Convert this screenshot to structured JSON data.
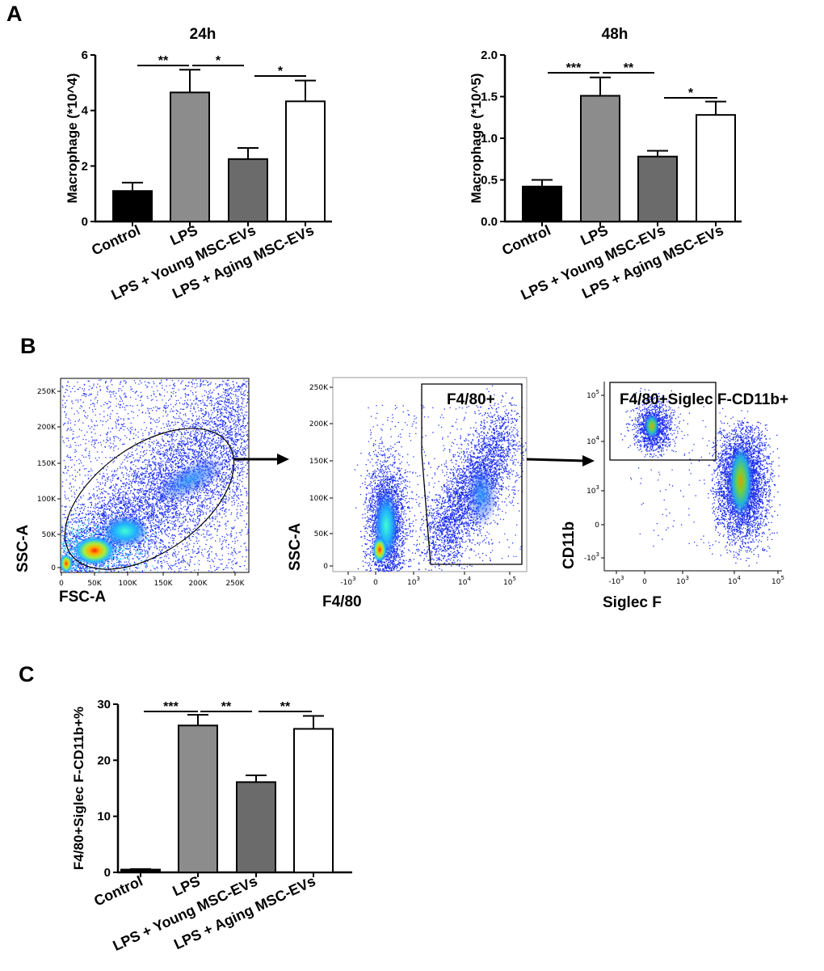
{
  "panels": {
    "a": {
      "letter": "A"
    },
    "b": {
      "letter": "B"
    },
    "c": {
      "letter": "C"
    }
  },
  "colors": {
    "control": "#000000",
    "lps": "#8c8c8c",
    "young": "#6b6b6b",
    "aging": "#ffffff"
  },
  "chart_data": [
    {
      "id": "chart-24h",
      "type": "bar",
      "title": "24h",
      "ylabel": "Macrophage (*10^4)",
      "xlabel": "",
      "ylim": [
        0,
        6
      ],
      "yticks": [
        "0",
        "2",
        "4",
        "6"
      ],
      "yticks_values": [
        0,
        2,
        4,
        6
      ],
      "categories": [
        "Control",
        "LPS",
        "LPS + Young MSC-EVs",
        "LPS + Aging MSC-EVs"
      ],
      "values": [
        1.1,
        4.65,
        2.25,
        4.33
      ],
      "errors": [
        0.3,
        0.82,
        0.4,
        0.75
      ],
      "significance": [
        {
          "from": 0,
          "to": 1,
          "label": "**"
        },
        {
          "from": 1,
          "to": 2,
          "label": "*"
        },
        {
          "from": 2,
          "to": 3,
          "label": "*"
        }
      ]
    },
    {
      "id": "chart-48h",
      "type": "bar",
      "title": "48h",
      "ylabel": "Macrophage (*10^5)",
      "xlabel": "",
      "ylim": [
        0,
        2
      ],
      "yticks": [
        "0.0",
        "0.5",
        "1.0",
        "1.5",
        "2.0"
      ],
      "yticks_values": [
        0,
        0.5,
        1.0,
        1.5,
        2.0
      ],
      "categories": [
        "Control",
        "LPS",
        "LPS + Young MSC-EVs",
        "LPS + Aging MSC-EVs"
      ],
      "values": [
        0.42,
        1.51,
        0.78,
        1.28
      ],
      "errors": [
        0.08,
        0.22,
        0.07,
        0.16
      ],
      "significance": [
        {
          "from": 0,
          "to": 1,
          "label": "***"
        },
        {
          "from": 1,
          "to": 2,
          "label": "**"
        },
        {
          "from": 2,
          "to": 3,
          "label": "*"
        }
      ]
    },
    {
      "id": "chart-c",
      "type": "bar",
      "title": "",
      "ylabel": "F4/80+Siglec F-CD11b+%",
      "xlabel": "",
      "ylim": [
        0,
        30
      ],
      "yticks": [
        "0",
        "10",
        "20",
        "30"
      ],
      "yticks_values": [
        0,
        10,
        20,
        30
      ],
      "categories": [
        "Control",
        "LPS",
        "LPS + Young MSC-EVs",
        "LPS + Aging MSC-EVs"
      ],
      "values": [
        0.5,
        26.2,
        16.1,
        25.6
      ],
      "errors": [
        0.1,
        1.9,
        1.2,
        2.3
      ],
      "significance": [
        {
          "from": 0,
          "to": 1,
          "label": "***"
        },
        {
          "from": 1,
          "to": 2,
          "label": "**"
        },
        {
          "from": 2,
          "to": 3,
          "label": "**"
        }
      ]
    }
  ],
  "flow": {
    "plot1": {
      "xlabel": "FSC-A",
      "ylabel": "SSC-A",
      "xticks": [
        "0",
        "50K",
        "100K",
        "150K",
        "200K",
        "250K"
      ],
      "yticks": [
        "0",
        "50K",
        "100K",
        "150K",
        "200K",
        "250K"
      ]
    },
    "plot2": {
      "xlabel": "F4/80",
      "ylabel": "SSC-A",
      "gate_label": "F4/80+",
      "xticks": [
        {
          "base": "-10",
          "exp": "3"
        },
        {
          "base": "0",
          "exp": ""
        },
        {
          "base": "10",
          "exp": "3"
        },
        {
          "base": "10",
          "exp": "4"
        },
        {
          "base": "10",
          "exp": "5"
        }
      ],
      "yticks": [
        "0",
        "50K",
        "100K",
        "150K",
        "200K",
        "250K"
      ]
    },
    "plot3": {
      "xlabel": "Siglec F",
      "ylabel": "CD11b",
      "gate_label": "F4/80+Siglec F-CD11b+",
      "xticks": [
        {
          "base": "-10",
          "exp": "3"
        },
        {
          "base": "0",
          "exp": ""
        },
        {
          "base": "10",
          "exp": "3"
        },
        {
          "base": "10",
          "exp": "4"
        },
        {
          "base": "10",
          "exp": "5"
        }
      ],
      "yticks": [
        {
          "base": "10",
          "exp": "5"
        },
        {
          "base": "10",
          "exp": "4"
        },
        {
          "base": "10",
          "exp": "3"
        },
        {
          "base": "0",
          "exp": ""
        },
        {
          "base": "-10",
          "exp": "3"
        }
      ]
    }
  }
}
